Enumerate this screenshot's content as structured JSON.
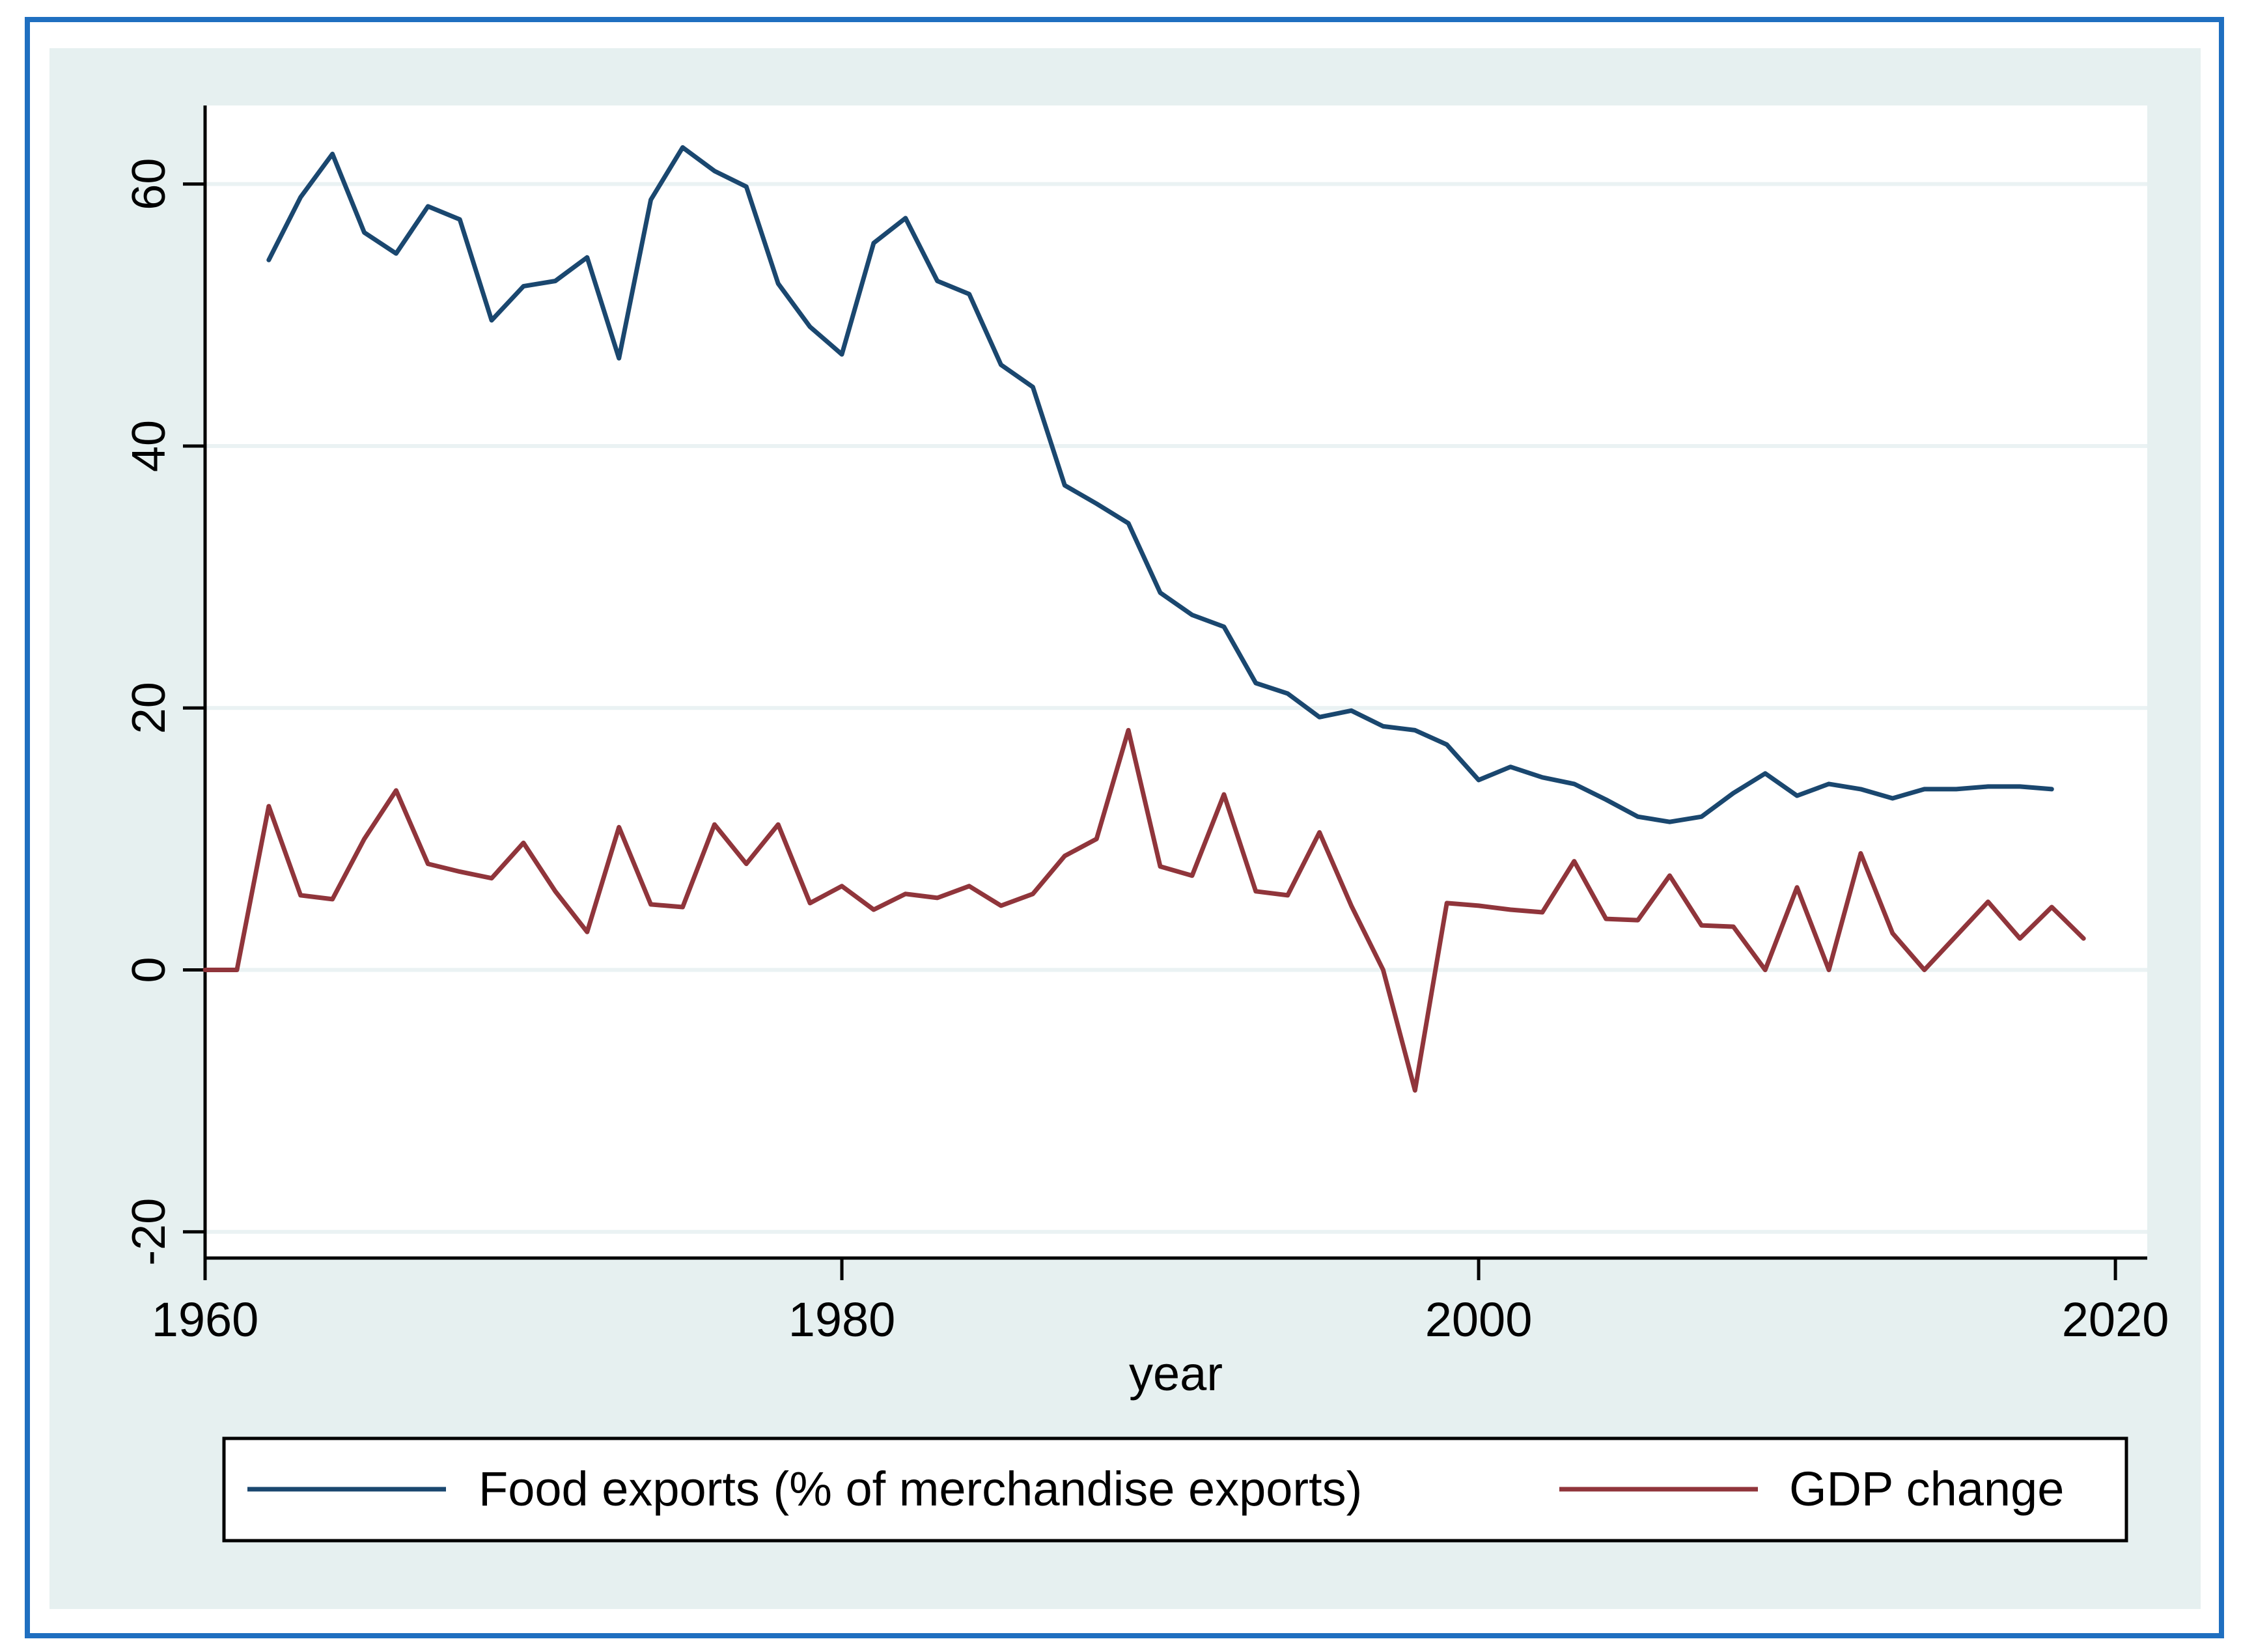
{
  "chart_data": {
    "type": "line",
    "title": "",
    "xlabel": "year",
    "ylabel": "",
    "xlim": [
      1960,
      2021
    ],
    "ylim": [
      -22,
      66
    ],
    "x_ticks": [
      1960,
      1980,
      2000,
      2020
    ],
    "y_ticks": [
      -20,
      0,
      20,
      40,
      60
    ],
    "x_tick_labels": [
      "1960",
      "1980",
      "2000",
      "2020"
    ],
    "y_tick_labels": [
      "-20",
      "0",
      "20",
      "40",
      "60"
    ],
    "grid": "horizontal",
    "legend_position": "bottom",
    "series": [
      {
        "name": "Food exports (% of merchandise exports)",
        "color": "#1a476f",
        "x": [
          1962,
          1963,
          1964,
          1965,
          1966,
          1967,
          1968,
          1969,
          1970,
          1971,
          1972,
          1973,
          1974,
          1975,
          1976,
          1977,
          1978,
          1979,
          1980,
          1981,
          1982,
          1983,
          1984,
          1985,
          1986,
          1987,
          1988,
          1989,
          1990,
          1991,
          1992,
          1993,
          1994,
          1995,
          1996,
          1997,
          1998,
          1999,
          2000,
          2001,
          2002,
          2003,
          2004,
          2005,
          2006,
          2007,
          2008,
          2009,
          2010,
          2011,
          2012,
          2013,
          2014,
          2015,
          2016,
          2017,
          2018
        ],
        "values": [
          54.2,
          59.0,
          62.3,
          56.3,
          54.7,
          58.3,
          57.3,
          49.6,
          52.2,
          52.6,
          54.4,
          46.7,
          58.8,
          62.8,
          61.0,
          59.8,
          52.4,
          49.1,
          47.0,
          55.5,
          57.4,
          52.6,
          51.6,
          46.2,
          44.5,
          37.0,
          35.6,
          34.1,
          28.8,
          27.1,
          26.2,
          21.9,
          21.1,
          19.3,
          19.8,
          18.6,
          18.3,
          17.2,
          14.5,
          15.5,
          14.7,
          14.2,
          13.0,
          11.7,
          11.3,
          11.7,
          13.5,
          15.0,
          13.3,
          14.2,
          13.8,
          13.1,
          13.8,
          13.8,
          14.0,
          14.0,
          13.8
        ]
      },
      {
        "name": "GDP change",
        "color": "#90353b",
        "x": [
          1960,
          1961,
          1962,
          1963,
          1964,
          1965,
          1966,
          1967,
          1968,
          1969,
          1970,
          1971,
          1972,
          1973,
          1974,
          1975,
          1976,
          1977,
          1978,
          1979,
          1980,
          1981,
          1982,
          1983,
          1984,
          1985,
          1986,
          1987,
          1988,
          1989,
          1990,
          1991,
          1992,
          1993,
          1994,
          1995,
          1996,
          1997,
          1998,
          1999,
          2000,
          2001,
          2002,
          2003,
          2004,
          2005,
          2006,
          2007,
          2008,
          2009,
          2010,
          2011,
          2012,
          2013,
          2014,
          2015,
          2016,
          2017,
          2018,
          2019
        ],
        "values": [
          0,
          0,
          12.5,
          5.7,
          5.4,
          10.0,
          13.7,
          8.1,
          7.5,
          7.0,
          9.7,
          6.0,
          2.9,
          10.9,
          5.0,
          4.8,
          11.1,
          8.1,
          11.1,
          5.1,
          6.4,
          4.6,
          5.8,
          5.5,
          6.4,
          4.9,
          5.8,
          8.7,
          10.0,
          18.3,
          7.9,
          7.2,
          13.4,
          6.0,
          5.7,
          10.5,
          4.9,
          0.0,
          -9.2,
          5.1,
          4.9,
          4.6,
          4.4,
          8.3,
          3.9,
          3.8,
          7.2,
          3.4,
          3.3,
          0.0,
          6.3,
          0.0,
          8.9,
          2.8,
          0.0,
          2.6,
          5.2,
          2.4,
          4.8,
          2.4
        ]
      }
    ]
  }
}
